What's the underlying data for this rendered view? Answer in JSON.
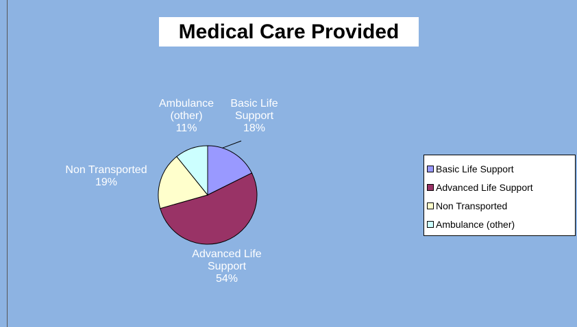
{
  "chart_data": {
    "type": "pie",
    "title": "Medical Care Provided",
    "categories": [
      "Basic Life Support",
      "Advanced Life Support",
      "Non Transported",
      "Ambulance (other)"
    ],
    "values": [
      18,
      54,
      19,
      11
    ],
    "value_labels": [
      "18%",
      "54%",
      "19%",
      "11%"
    ],
    "colors": [
      "#9999ff",
      "#993366",
      "#ffffcc",
      "#ccffff"
    ],
    "legend": "right"
  }
}
